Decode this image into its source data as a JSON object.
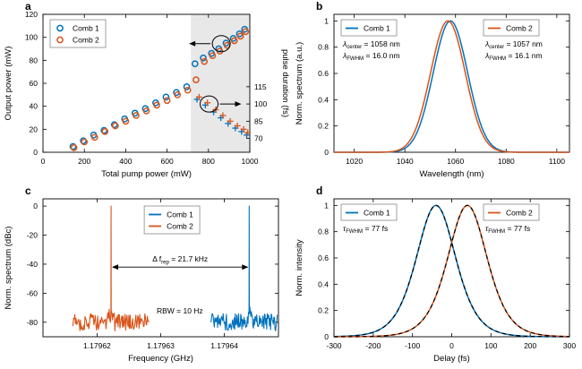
{
  "figure": {
    "bg": "#ffffff",
    "colors": {
      "comb1": "#0072BD",
      "comb2": "#D95319",
      "fit": "#000000",
      "shade": "#E8E8E8",
      "axis": "#000000"
    }
  },
  "chart_data": [
    {
      "panel": "a",
      "panel_label": "a",
      "type": "scatter",
      "xlabel": "Total pump power (mW)",
      "ylabel": "Output power (mW)",
      "ylabel_right": "pulse duration (fs)",
      "xlim": [
        0,
        1000
      ],
      "xticks": [
        0,
        200,
        400,
        600,
        800,
        1000
      ],
      "ylim": [
        0,
        120
      ],
      "yticks": [
        0,
        20,
        40,
        60,
        80,
        100,
        120
      ],
      "ylim_right": [
        58,
        178
      ],
      "yticks_right": [
        70,
        85,
        100,
        115
      ],
      "shade_x": [
        715,
        1000
      ],
      "legend": {
        "pos": "tl",
        "entries": [
          {
            "label": "Comb 1",
            "color": "comb1",
            "marker": "o"
          },
          {
            "label": "Comb 2",
            "color": "comb2",
            "marker": "o"
          }
        ]
      },
      "series": [
        {
          "name": "Comb 1 output",
          "marker": "o",
          "color": "comb1",
          "axis": "left",
          "x": [
            145,
            195,
            245,
            295,
            345,
            395,
            445,
            495,
            545,
            595,
            645,
            695,
            735,
            775,
            815,
            850,
            885,
            920,
            950,
            975
          ],
          "y": [
            5,
            10,
            15,
            19,
            24,
            29,
            34,
            38,
            43,
            48,
            52,
            57,
            77,
            82,
            86,
            90,
            95,
            99,
            103,
            107
          ]
        },
        {
          "name": "Comb 2 output",
          "marker": "o",
          "color": "comb2",
          "axis": "left",
          "x": [
            150,
            200,
            250,
            300,
            350,
            400,
            450,
            500,
            550,
            600,
            650,
            700,
            740,
            780,
            820,
            855,
            890,
            925,
            955,
            980
          ],
          "y": [
            4,
            9,
            13,
            18,
            23,
            27,
            32,
            36,
            41,
            45,
            50,
            54,
            63,
            79,
            84,
            88,
            93,
            97,
            101,
            105
          ]
        },
        {
          "name": "Comb 1 pulse duration",
          "marker": "+",
          "color": "comb1",
          "axis": "right",
          "x": [
            745,
            785,
            825,
            860,
            895,
            930,
            960,
            985
          ],
          "y": [
            104,
            99,
            93,
            88,
            83,
            79,
            76,
            73
          ]
        },
        {
          "name": "Comb 2 pulse duration",
          "marker": "+",
          "color": "comb2",
          "axis": "right",
          "x": [
            755,
            795,
            835,
            870,
            905,
            940,
            970,
            990
          ],
          "y": [
            106,
            101,
            95,
            90,
            85,
            81,
            78,
            75
          ]
        }
      ],
      "annotations": [
        {
          "kind": "ellipse-arrow",
          "x": 862,
          "y": 94.5,
          "axis": "left",
          "dir": "left"
        },
        {
          "kind": "ellipse-arrow",
          "x": 803,
          "y": 100,
          "axis": "right",
          "dir": "right"
        }
      ]
    },
    {
      "panel": "b",
      "panel_label": "b",
      "type": "line",
      "xlabel": "Wavelength (nm)",
      "ylabel": "Norm. spectrum (a.u.)",
      "xlim": [
        1012,
        1105
      ],
      "xticks": [
        1020,
        1040,
        1060,
        1080,
        1100
      ],
      "ylim": [
        0,
        1.05
      ],
      "yticks": [
        0,
        0.2,
        0.4,
        0.6,
        0.8,
        1
      ],
      "series": [
        {
          "name": "Comb 1",
          "color": "comb1",
          "shape": "gaussian",
          "center": 1058,
          "fwhm": 16.0,
          "amp": 1
        },
        {
          "name": "Comb 2",
          "color": "comb2",
          "shape": "gaussian",
          "center": 1057,
          "fwhm": 16.1,
          "amp": 1
        }
      ],
      "legends": [
        {
          "pos": "tl",
          "entry": {
            "label": "Comb 1",
            "color": "comb1"
          },
          "lines": [
            {
              "pre": "λ",
              "sub": "center",
              "post": " = 1058 nm",
              "italic": true
            },
            {
              "pre": "λ",
              "sub": "FWHM",
              "post": " = 16.0 nm",
              "italic": true
            }
          ]
        },
        {
          "pos": "tr",
          "entry": {
            "label": "Comb 2",
            "color": "comb2"
          },
          "lines": [
            {
              "pre": "λ",
              "sub": "center",
              "post": " = 1057 nm",
              "italic": true
            },
            {
              "pre": "λ",
              "sub": "FWHM",
              "post": " = 16.1 nm",
              "italic": true
            }
          ]
        }
      ]
    },
    {
      "panel": "c",
      "panel_label": "c",
      "type": "rf-spectrum",
      "xlabel": "Frequency (GHz)",
      "ylabel": "Norm. spectrum (dBc)",
      "xlim": [
        1.1796115,
        1.1796485
      ],
      "xticks": [
        1.17962,
        1.17963,
        1.17964
      ],
      "xtick_labels": [
        "1.17962",
        "1.17963",
        "1.17964"
      ],
      "ylim": [
        -90,
        5
      ],
      "yticks": [
        0,
        -20,
        -40,
        -60,
        -80
      ],
      "noise_floor": -80,
      "series": [
        {
          "name": "Comb 2",
          "color": "comb2",
          "peak_x": 1.1796222,
          "peak_y": 0,
          "span": 1.2e-05
        },
        {
          "name": "Comb 1",
          "color": "comb1",
          "peak_x": 1.1796439,
          "peak_y": 0,
          "span": 1.2e-05
        }
      ],
      "legend": {
        "pos": "inner-right",
        "entries": [
          {
            "label": "Comb 1",
            "color": "comb1"
          },
          {
            "label": "Comb 2",
            "color": "comb2"
          }
        ]
      },
      "annotations": {
        "delta": {
          "x1": 1.1796222,
          "x2": 1.1796439,
          "y": -42,
          "label": {
            "pre": "Δ f",
            "sub": "rep",
            "post": " = 21.7 kHz"
          }
        },
        "rbw": {
          "x": 1.179633,
          "y": -74,
          "text": "RBW = 10 Hz"
        }
      }
    },
    {
      "panel": "d",
      "panel_label": "d",
      "type": "autocorrelation",
      "xlabel": "Delay (fs)",
      "ylabel": "Norm. intensity",
      "xlim": [
        -300,
        300
      ],
      "xticks": [
        -300,
        -200,
        -100,
        0,
        100,
        200,
        300
      ],
      "ylim": [
        0,
        1.05
      ],
      "yticks": [
        0,
        0.2,
        0.4,
        0.6,
        0.8,
        1
      ],
      "series": [
        {
          "name": "Comb 1",
          "color": "comb1",
          "shape": "sech2",
          "center": -40,
          "fwhm": 119,
          "fit": true
        },
        {
          "name": "Comb 2",
          "color": "comb2",
          "shape": "sech2",
          "center": 40,
          "fwhm": 119,
          "fit": true
        }
      ],
      "legends": [
        {
          "pos": "tl",
          "entry": {
            "label": "Comb 1",
            "color": "comb1"
          },
          "lines": [
            {
              "pre": "τ",
              "sub": "FWHM",
              "post": " = 77 fs",
              "italic": true
            }
          ]
        },
        {
          "pos": "tr",
          "entry": {
            "label": "Comb 2",
            "color": "comb2"
          },
          "lines": [
            {
              "pre": "τ",
              "sub": "FWHM",
              "post": " = 77 fs",
              "italic": true
            }
          ]
        }
      ]
    }
  ]
}
